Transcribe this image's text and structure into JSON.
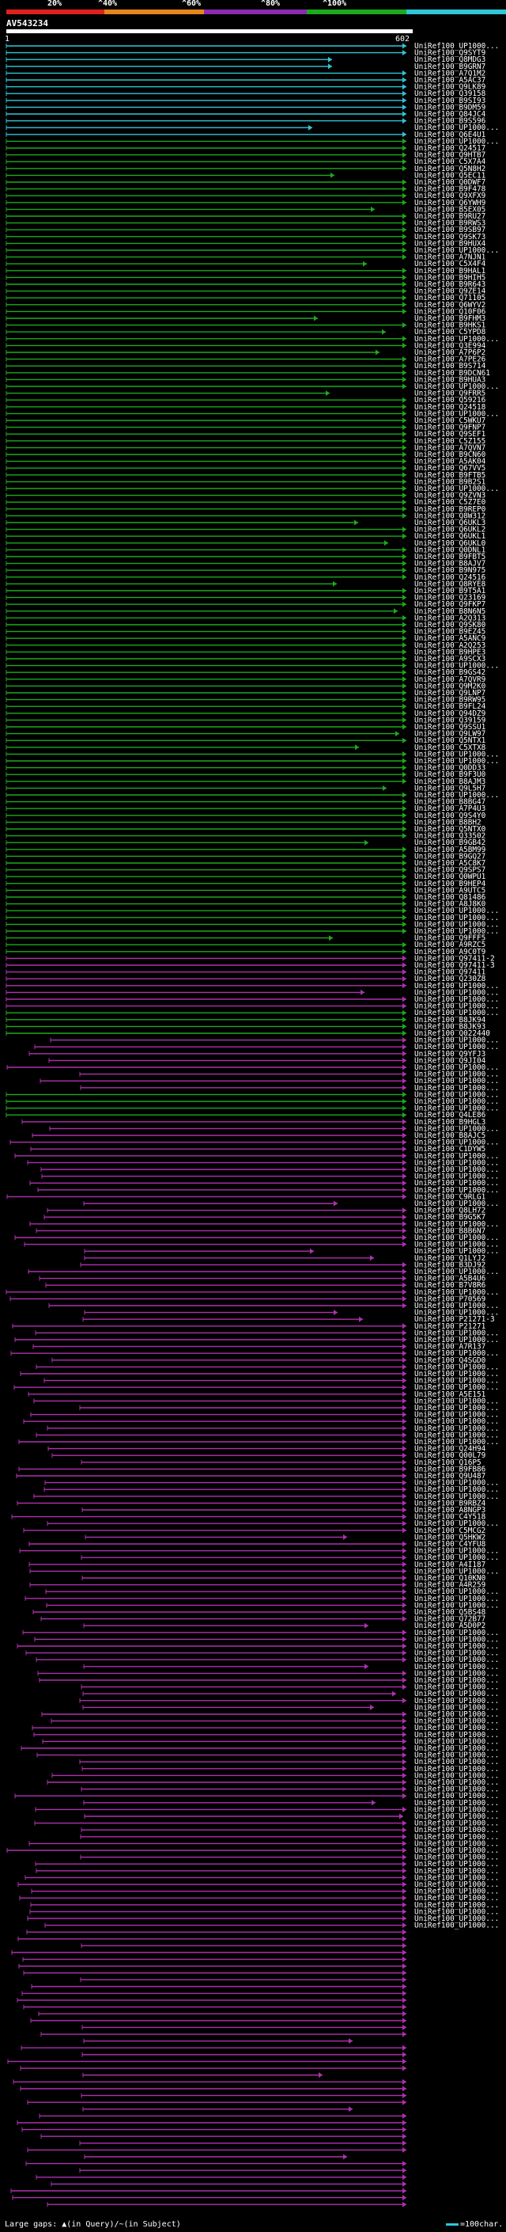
{
  "legend": {
    "labels": [
      "20%",
      "^40%",
      "^60%",
      "^80%",
      "^100%"
    ],
    "colors": [
      "#e0201c",
      "#e8841c",
      "#8b2bb0",
      "#1caa1c",
      "#2ec7d8"
    ]
  },
  "query": {
    "name": "AV543234",
    "start_label": "1",
    "end_label": "602"
  },
  "footer": {
    "legend_text": "Large gaps: ▲(in Query)/~(in Subject)",
    "scale_text": "=100char."
  },
  "chart_data": {
    "type": "alignment_overview",
    "query_length": 602,
    "hit_count": 318,
    "identity_bins": [
      "<20%",
      "20-40%",
      "40-60%",
      "60-80%",
      "80-100%"
    ],
    "hit_blocks": [
      {
        "category": "cyan",
        "count": 14
      },
      {
        "category": "green",
        "count": 120
      },
      {
        "category": "magenta",
        "count": 8
      },
      {
        "category": "green",
        "count": 4
      },
      {
        "category": "magenta",
        "count": 8
      },
      {
        "category": "green",
        "count": 4
      },
      {
        "category": "magenta",
        "count": 160
      }
    ],
    "labels": [
      "UniRef100_UP1000...",
      "UniRef100_Q9SYT9",
      "UniRef100_Q8MDG3",
      "UniRef100_B9GRN7",
      "UniRef100_A7Q1M2",
      "UniRef100_A5AC37",
      "UniRef100_Q9LK89",
      "UniRef100_Q39158",
      "UniRef100_B9SI93",
      "UniRef100_B9DM59",
      "UniRef100_Q84JC4",
      "UniRef100_B9S596",
      "UniRef100_UP1000...",
      "UniRef100_Q6E4U1",
      "UniRef100_UP1000...",
      "UniRef100_Q24517",
      "UniRef100_Q9HTB7",
      "UniRef100_C5X7A4",
      "UniRef100_Q5N8H2",
      "UniRef100_Q5EC11",
      "UniRef100_Q0DWF7",
      "UniRef100_B9F478",
      "UniRef100_Q9XFX9",
      "UniRef100_Q6YWH9",
      "UniRef100_B5EX05",
      "UniRef100_B9RU27",
      "UniRef100_B9RWS3",
      "UniRef100_B9SB97",
      "UniRef100_Q9SK73",
      "UniRef100_B9HUX4",
      "UniRef100_UP1000...",
      "UniRef100_A7NJN1",
      "UniRef100_C5X4F4",
      "UniRef100_B9HAL1",
      "UniRef100_B9HIH5",
      "UniRef100_B9R643",
      "UniRef100_Q9ZE14",
      "UniRef100_Q71105",
      "UniRef100_Q6WYV2",
      "UniRef100_Q10F06",
      "UniRef100_B9FHM3",
      "UniRef100_B9HKS1",
      "UniRef100_C5YPD8",
      "UniRef100_UP1000...",
      "UniRef100_Q3E994",
      "UniRef100_A7P6P2",
      "UniRef100_A7PE26",
      "UniRef100_B9S714",
      "UniRef100_B9DCN61",
      "UniRef100_B9HUA3",
      "UniRef100_UP1000...",
      "UniRef100_Q9FRR5",
      "UniRef100_Q59216",
      "UniRef100_Q24518",
      "UniRef100_UP1000...",
      "UniRef100_C5WKU7",
      "UniRef100_Q9FNP7",
      "UniRef100_Q9SEF1",
      "UniRef100_C5Z155",
      "UniRef100_A7QVN7",
      "UniRef100_B9CN60",
      "UniRef100_A5AK04",
      "UniRef100_Q67VV5",
      "UniRef100_B9FTB5",
      "UniRef100_B9B2S1",
      "UniRef100_UP1000...",
      "UniRef100_Q9ZVN3",
      "UniRef100_C5Z7E0",
      "UniRef100_B9REP0",
      "UniRef100_Q8W312",
      "UniRef100_Q6UKL3",
      "UniRef100_Q6UKL2",
      "UniRef100_Q6UKL1",
      "UniRef100_Q6UKL0",
      "UniRef100_Q0DNL1",
      "UniRef100_B9FBT5",
      "UniRef100_B8AJV7",
      "UniRef100_B9N975",
      "UniRef100_Q24516",
      "UniRef100_Q8RYE8",
      "UniRef100_B9T5A1",
      "UniRef100_Q23169",
      "UniRef100_Q9FKP7",
      "UniRef100_B8N6N5",
      "UniRef100_A2Q313",
      "UniRef100_Q9SK80",
      "UniRef100_B9EZ45",
      "UniRef100_A5ANC9",
      "UniRef100_A2Q253",
      "UniRef100_B9HPE3",
      "UniRef100_A9SCX3",
      "UniRef100_UP1000...",
      "UniRef100_B9GS42",
      "UniRef100_A7QVR9",
      "UniRef100_Q9M2K0",
      "UniRef100_Q9LNP7",
      "UniRef100_B9RW95",
      "UniRef100_B9FL24",
      "UniRef100_Q94DZ9",
      "UniRef100_Q39159",
      "UniRef100_Q9SSU1",
      "UniRef100_Q9LW97",
      "UniRef100_Q5NTX1",
      "UniRef100_C5XTX8",
      "UniRef100_UP1000...",
      "UniRef100_UP1000...",
      "UniRef100_Q0DD33",
      "UniRef100_B9F3U0",
      "UniRef100_B8AJM3",
      "UniRef100_Q9L5H7",
      "UniRef100_UP1000...",
      "UniRef100_B8BG47",
      "UniRef100_A7P4U3",
      "UniRef100_Q9S4Y0",
      "UniRef100_B8BH2",
      "UniRef100_Q5NTX0",
      "UniRef100_Q33502",
      "UniRef100_B9GB42",
      "UniRef100_A5BM99",
      "UniRef100_B9GQ27",
      "UniRef100_A5C8K7",
      "UniRef100_Q9SPS7",
      "UniRef100_Q0WPU1",
      "UniRef100_B9HEP4",
      "UniRef100_A9UTC5",
      "UniRef100_Q81486",
      "UniRef100_A8J8K0",
      "UniRef100_UP1000...",
      "UniRef100_UP1000...",
      "UniRef100_UP1000...",
      "UniRef100_UP1000...",
      "UniRef100_Q9FFF5",
      "UniRef100_A9RZC5",
      "UniRef100_A9C0T9",
      "UniRef100_Q97411-2",
      "UniRef100_Q97411-3",
      "UniRef100_Q97411",
      "UniRef100_Q230Z8",
      "UniRef100_UP1000...",
      "UniRef100_UP1000...",
      "UniRef100_UP1000...",
      "UniRef100_UP1000...",
      "UniRef100_UP1000...",
      "UniRef100_B8JK94",
      "UniRef100_B8JK93",
      "UniRef100_Q022440",
      "UniRef100_UP1000...",
      "UniRef100_UP1000...",
      "UniRef100_Q9YFJ3",
      "UniRef100_Q9JI04",
      "UniRef100_UP1000...",
      "UniRef100_UP1000...",
      "UniRef100_UP1000...",
      "UniRef100_UP1000...",
      "UniRef100_UP1000...",
      "UniRef100_UP1000...",
      "UniRef100_UP1000...",
      "UniRef100_Q4LE86",
      "UniRef100_B9HGL3",
      "UniRef100_UP1000...",
      "UniRef100_B8AJC5",
      "UniRef100_UP1000...",
      "UniRef100_C1DYW5",
      "UniRef100_UP1000...",
      "UniRef100_UP1000...",
      "UniRef100_UP1000...",
      "UniRef100_UP1000...",
      "UniRef100_UP1000...",
      "UniRef100_UP1000...",
      "UniRef100_C9RLG1",
      "UniRef100_UP1000...",
      "UniRef100_Q8LH72",
      "UniRef100_B9G5K7",
      "UniRef100_UP1000...",
      "UniRef100_B8B6N7",
      "UniRef100_UP1000...",
      "UniRef100_UP1000...",
      "UniRef100_UP1000...",
      "UniRef100_Q1LYJ2",
      "UniRef100_B3DJ92",
      "UniRef100_UP1000...",
      "UniRef100_A5B4U6",
      "UniRef100_B7V8R6",
      "UniRef100_UP1000...",
      "UniRef100_P70569",
      "UniRef100_UP1000...",
      "UniRef100_UP1000...",
      "UniRef100_P21271-3",
      "UniRef100_P21271",
      "UniRef100_UP1000...",
      "UniRef100_UP1000...",
      "UniRef100_A7R137",
      "UniRef100_UP1000...",
      "UniRef100_Q4SGD0",
      "UniRef100_UP1000...",
      "UniRef100_UP1000...",
      "UniRef100_UP1000...",
      "UniRef100_UP1000...",
      "UniRef100_A5E151",
      "UniRef100_UP1000...",
      "UniRef100_UP1000...",
      "UniRef100_UP1000...",
      "UniRef100_UP1000...",
      "UniRef100_UP1000...",
      "UniRef100_UP1000...",
      "UniRef100_UP1000...",
      "UniRef100_Q24H94",
      "UniRef100_Q00L79",
      "UniRef100_Q16P5",
      "UniRef100_B9FB86",
      "UniRef100_Q9U487",
      "UniRef100_UP1000...",
      "UniRef100_UP1000...",
      "UniRef100_UP1000...",
      "UniRef100_B9RBZ4",
      "UniRef100_A8NGP3",
      "UniRef100_C4Y518",
      "UniRef100_UP1000...",
      "UniRef100_C5MCG2",
      "UniRef100_Q5HKW2",
      "UniRef100_C4YFU8",
      "UniRef100_UP1000...",
      "UniRef100_UP1000...",
      "UniRef100_A4I187",
      "UniRef100_UP1000...",
      "UniRef100_Q10KN0",
      "UniRef100_A4R259",
      "UniRef100_UP1000...",
      "UniRef100_UP1000...",
      "UniRef100_UP1000...",
      "UniRef100_Q5BS48",
      "UniRef100_Q72B77",
      "UniRef100_A5D0P2",
      "UniRef100_UP1000...",
      "UniRef100_UP1000...",
      "UniRef100_UP1000...",
      "UniRef100_UP1000...",
      "UniRef100_UP1000...",
      "UniRef100_UP1000...",
      "UniRef100_UP1000...",
      "UniRef100_UP1000...",
      "UniRef100_UP1000...",
      "UniRef100_UP1000...",
      "UniRef100_UP1000...",
      "UniRef100_UP1000...",
      "UniRef100_UP1000...",
      "UniRef100_UP1000...",
      "UniRef100_UP1000...",
      "UniRef100_UP1000...",
      "UniRef100_UP1000...",
      "UniRef100_UP1000...",
      "UniRef100_UP1000...",
      "UniRef100_UP1000...",
      "UniRef100_UP1000...",
      "UniRef100_UP1000...",
      "UniRef100_UP1000...",
      "UniRef100_UP1000...",
      "UniRef100_UP1000...",
      "UniRef100_UP1000...",
      "UniRef100_UP1000...",
      "UniRef100_UP1000...",
      "UniRef100_UP1000...",
      "UniRef100_UP1000...",
      "UniRef100_UP1000...",
      "UniRef100_UP1000...",
      "UniRef100_UP1000...",
      "UniRef100_UP1000...",
      "UniRef100_UP1000...",
      "UniRef100_UP1000...",
      "UniRef100_UP1000...",
      "UniRef100_UP1000...",
      "UniRef100_UP1000...",
      "UniRef100_UP1000...",
      "UniRef100_UP1000...",
      "UniRef100_UP1000...",
      "UniRef100_UP1000...",
      "UniRef100_UP1000..."
    ]
  }
}
